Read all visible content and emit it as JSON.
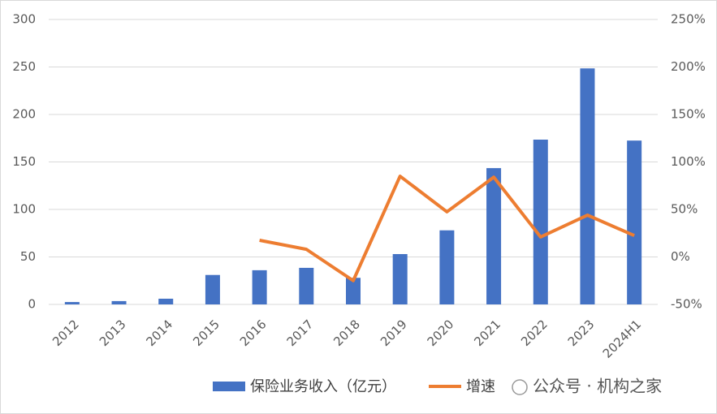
{
  "chart_data": {
    "type": "bar-line",
    "categories": [
      "2012",
      "2013",
      "2014",
      "2015",
      "2016",
      "2017",
      "2018",
      "2019",
      "2020",
      "2021",
      "2022",
      "2023",
      "2024H1"
    ],
    "series": [
      {
        "name": "保险业务收入（亿元）",
        "type": "bar",
        "color": "#4472c4",
        "values": [
          2.5,
          3.5,
          6,
          31,
          36,
          38.5,
          28,
          53,
          78,
          143.5,
          173.5,
          248.5,
          172.5
        ]
      },
      {
        "name": "增速",
        "type": "line",
        "axis": "y2",
        "color": "#ed7d31",
        "values": [
          null,
          null,
          null,
          null,
          17.5,
          8,
          -25,
          85,
          47.5,
          84,
          21,
          44,
          22.5
        ]
      }
    ],
    "ylim": [
      0,
      300
    ],
    "yticks": [
      0,
      50,
      100,
      150,
      200,
      250,
      300
    ],
    "y2lim": [
      -50,
      250
    ],
    "y2ticks": [
      {
        "value": -50,
        "label": "-50%"
      },
      {
        "value": 0,
        "label": "0%"
      },
      {
        "value": 50,
        "label": "50%"
      },
      {
        "value": 100,
        "label": "100%"
      },
      {
        "value": 150,
        "label": "150%"
      },
      {
        "value": 200,
        "label": "200%"
      },
      {
        "value": 250,
        "label": "250%"
      }
    ],
    "grid": true,
    "legend": "bottom",
    "watermark": "公众号 · 机构之家"
  }
}
